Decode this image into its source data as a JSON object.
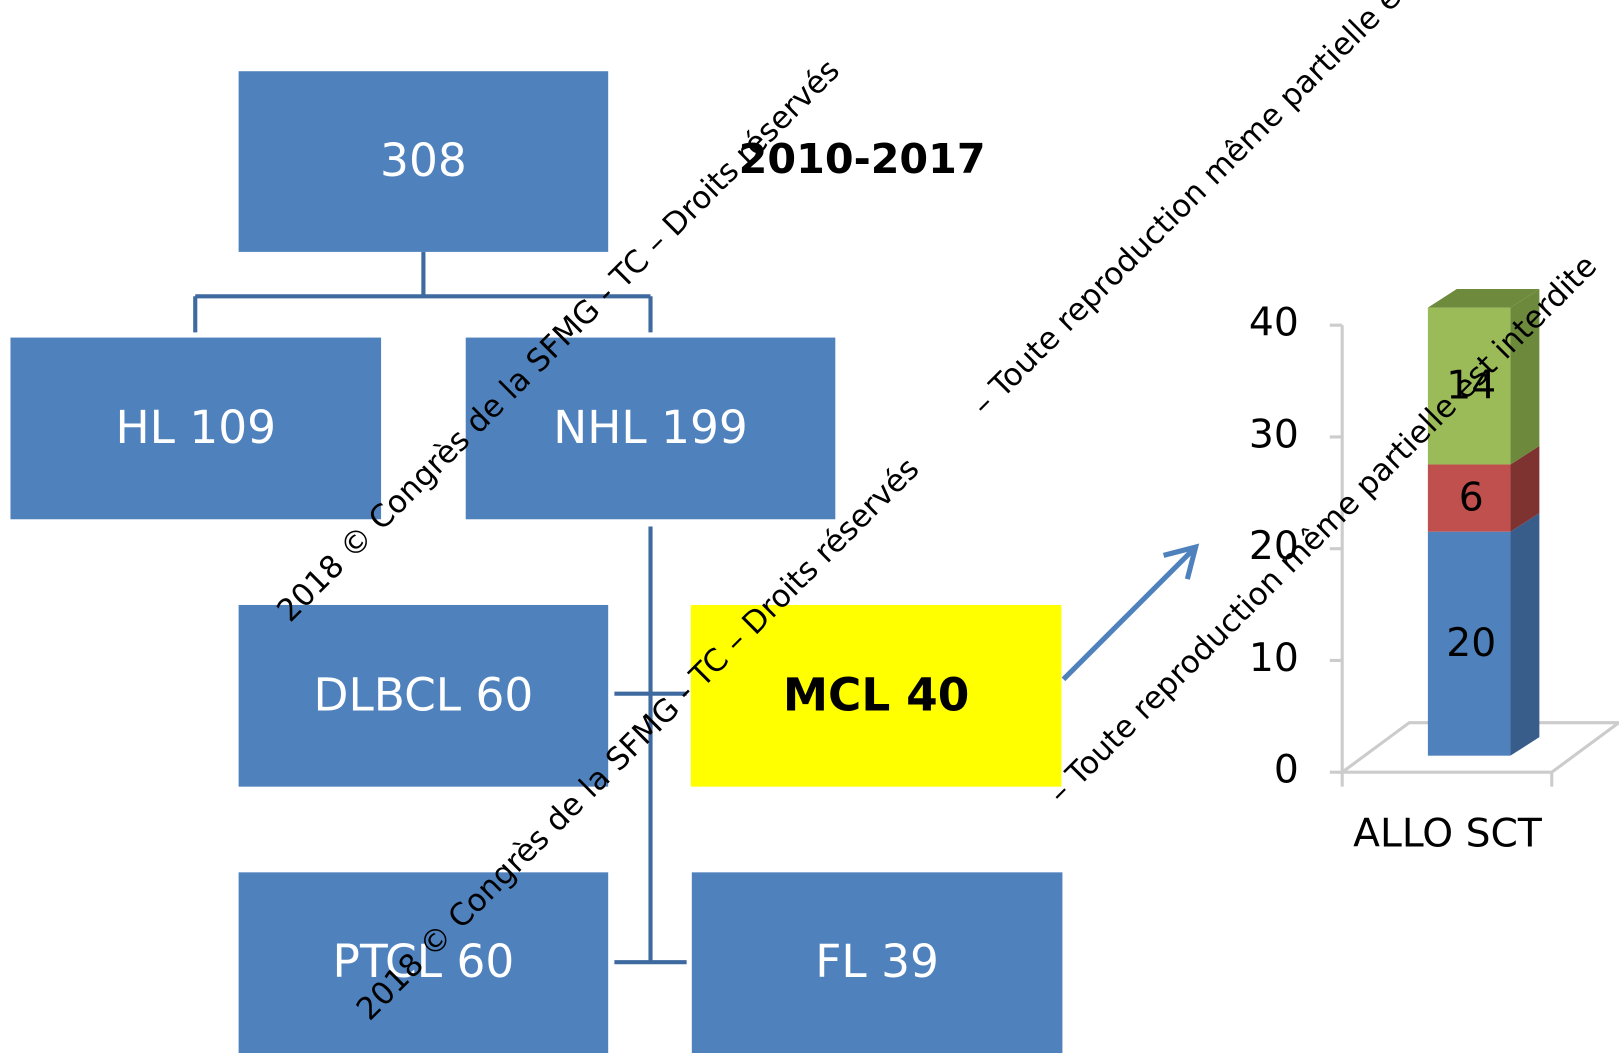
{
  "title": "2010-2017",
  "nodes": [
    {
      "label": "308"
    },
    {
      "label": "HL 109"
    },
    {
      "label": "NHL 199"
    },
    {
      "label": "DLBCL 60"
    },
    {
      "label": "MCL 40"
    },
    {
      "label": "PTCL 60"
    },
    {
      "label": "FL 39"
    }
  ],
  "watermark": [
    "2018 © Congrès de la SFMG - TC –  Droits réservés",
    "– Toute reproduction même partielle est interdite"
  ],
  "chart": {
    "type": "bar",
    "categories": [
      "ALLO SCT"
    ],
    "series": [
      {
        "color": "#4f81bd",
        "values": [
          20
        ]
      },
      {
        "color": "#c0504d",
        "values": [
          6
        ]
      },
      {
        "color": "#9bbb59",
        "values": [
          14
        ]
      }
    ],
    "ylim": [
      0,
      40
    ],
    "yticks": [
      0,
      10,
      20,
      30,
      40
    ]
  }
}
